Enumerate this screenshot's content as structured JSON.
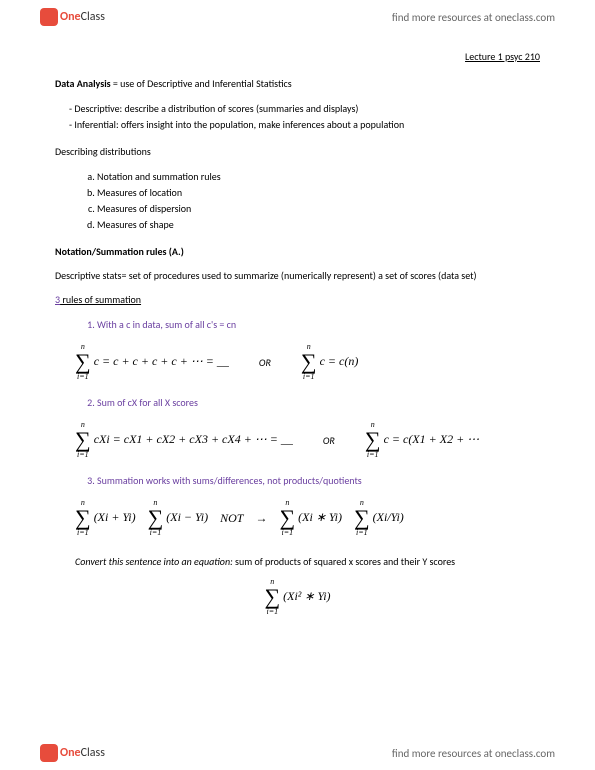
{
  "header": {
    "logo_one": "One",
    "logo_class": "Class",
    "find_more": "find more resources at oneclass.com"
  },
  "lecture_title": "Lecture 1 psyc 210",
  "data_analysis_label": "Data Analysis",
  "data_analysis_rest": " = use of Descriptive and Inferential Statistics",
  "bullet_desc": "Descriptive: describe a distribution of scores (summaries and displays)",
  "bullet_infer": "Inferential: offers insight into the population, make inferences about a population",
  "describing_label": "Describing distributions",
  "dist_items": {
    "a": "Notation and summation rules",
    "b": "Measures of location",
    "c": "Measures of dispersion",
    "d": "Measures of shape"
  },
  "notation_heading": "Notation/Summation rules (A.)",
  "desc_stats_line": "Descriptive stats= set of procedures used to summarize (numerically represent) a set of scores (data set)",
  "rules_count": "3",
  "rules_heading_rest": " rules of summation",
  "rule1": "With a c in data, sum of all c's = cn",
  "rule2": "Sum of cX for all X scores",
  "rule3": "Summation works with sums/differences, not products/quotients",
  "formula1_left": "c = c + c + c + c + ⋯ = __",
  "or_text": "OR",
  "formula1_right": "c = c(n)",
  "formula2_left": "cXi = cX1 + cX2 + cX3 + cX4 + ⋯ = __",
  "formula2_right": "c = c(X1 + X2 + ⋯",
  "formula3_a": "(Xi + Yi)",
  "formula3_b": "(Xi − Yi)",
  "formula3_not": "NOT",
  "formula3_arrow": "→",
  "formula3_c": "(Xi ∗ Yi)",
  "formula3_d": "(Xi/Yi)",
  "convert_italic": "Convert this sentence into an equation:",
  "convert_rest": " sum of products of squared x scores and their Y scores",
  "formula4": "(Xi² ∗ Yi)",
  "sigma_top": "n",
  "sigma_bot": "i=1"
}
